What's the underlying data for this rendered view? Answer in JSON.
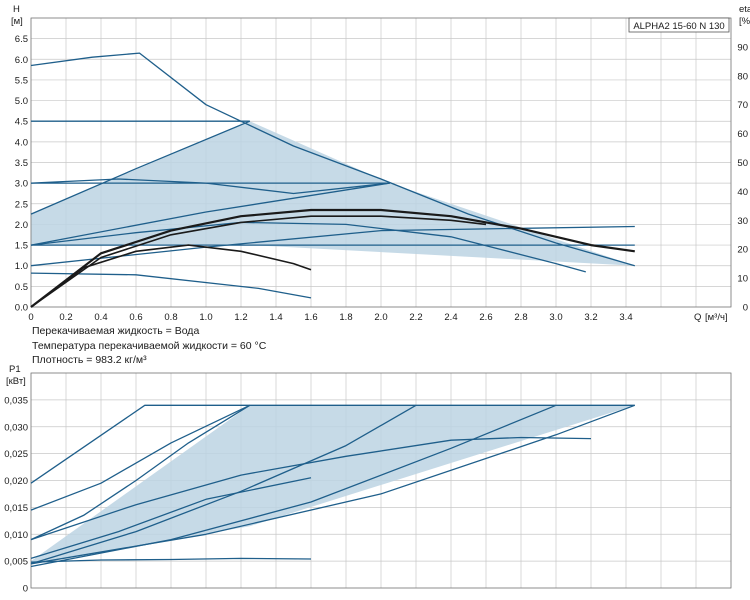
{
  "chart_data": [
    {
      "type": "line",
      "title": "ALPHA2 15-60 N 130",
      "ylabel": "H",
      "yunit": "[м]",
      "xlabel": "Q",
      "xunit": "[м³/ч]",
      "y2label": "eta",
      "y2unit": "[%]",
      "xlim": [
        0,
        4.0
      ],
      "ylim": [
        0,
        7.0
      ],
      "y2lim": [
        0,
        100
      ],
      "grid": true,
      "x_ticks": [
        "0",
        "0.2",
        "0.4",
        "0.6",
        "0.8",
        "1.0",
        "1.2",
        "1.4",
        "1.6",
        "1.8",
        "2.0",
        "2.2",
        "2.4",
        "2.6",
        "2.8",
        "3.0",
        "3.2",
        "3.4"
      ],
      "y_ticks": [
        "0.0",
        "0.5",
        "1.0",
        "1.5",
        "2.0",
        "2.5",
        "3.0",
        "3.5",
        "4.0",
        "4.5",
        "5.0",
        "5.5",
        "6.0",
        "6.5"
      ],
      "y2_ticks": [
        "0",
        "10",
        "20",
        "30",
        "40",
        "50",
        "60",
        "70",
        "80",
        "90"
      ],
      "shaded_region": {
        "x": [
          0,
          1.25,
          2.05,
          3.45,
          1.25,
          0
        ],
        "y": [
          2.25,
          4.5,
          3.0,
          1.0,
          1.5,
          1.5
        ]
      },
      "series": [
        {
          "x": [
            0,
            0.35,
            0.62,
            1.0,
            1.5,
            2.0,
            2.5,
            3.0,
            3.45
          ],
          "y": [
            5.85,
            6.05,
            6.15,
            4.9,
            3.9,
            3.1,
            2.25,
            1.55,
            1.0
          ]
        },
        {
          "x": [
            0,
            1.25
          ],
          "y": [
            4.5,
            4.5
          ]
        },
        {
          "x": [
            0,
            0.6,
            1.25
          ],
          "y": [
            2.25,
            3.35,
            4.5
          ]
        },
        {
          "x": [
            0,
            0.5,
            1.0,
            1.5,
            2.05
          ],
          "y": [
            3.0,
            3.1,
            3.0,
            2.75,
            3.0
          ]
        },
        {
          "x": [
            0,
            2.05
          ],
          "y": [
            3.0,
            3.0
          ]
        },
        {
          "x": [
            0,
            1.0,
            2.05
          ],
          "y": [
            1.5,
            2.3,
            3.0
          ]
        },
        {
          "x": [
            0,
            2.0,
            3.45
          ],
          "y": [
            1.5,
            1.5,
            1.5
          ]
        },
        {
          "x": [
            0,
            0.6,
            1.3,
            1.6
          ],
          "y": [
            0.82,
            0.78,
            0.45,
            0.22
          ]
        },
        {
          "x": [
            0,
            1.0,
            2.0,
            3.45
          ],
          "y": [
            1.0,
            1.45,
            1.85,
            1.95
          ]
        },
        {
          "x": [
            0,
            0.6,
            1.2,
            1.8,
            2.4,
            3.0,
            3.17
          ],
          "y": [
            1.5,
            1.8,
            2.05,
            2.0,
            1.7,
            1.05,
            0.85
          ]
        },
        {
          "x": [
            0,
            0.3,
            0.6,
            0.9,
            1.2,
            1.5,
            1.6
          ],
          "y": [
            0,
            0.95,
            1.35,
            1.5,
            1.35,
            1.05,
            0.9
          ]
        },
        {
          "x": [
            0,
            0.4,
            0.8,
            1.2,
            1.6,
            2.0,
            2.4,
            2.8,
            3.2,
            3.45
          ],
          "y": [
            0,
            1.3,
            1.85,
            2.2,
            2.35,
            2.35,
            2.2,
            1.9,
            1.5,
            1.35
          ]
        },
        {
          "x": [
            0,
            0.4,
            0.8,
            1.2,
            1.6,
            2.0,
            2.4,
            2.6
          ],
          "y": [
            0,
            1.2,
            1.75,
            2.05,
            2.2,
            2.2,
            2.1,
            2.0
          ]
        }
      ]
    },
    {
      "type": "line",
      "ylabel": "P1",
      "yunit": "[кВт]",
      "xlim": [
        0,
        4.0
      ],
      "ylim": [
        0,
        0.04
      ],
      "grid": true,
      "y_ticks": [
        "0",
        "0,005",
        "0,010",
        "0,015",
        "0,020",
        "0,025",
        "0,030",
        "0,035"
      ],
      "shaded_region": {
        "x": [
          0,
          1.25,
          3.45,
          1.25,
          0
        ],
        "y": [
          0.005,
          0.034,
          0.034,
          0.0115,
          0.0045
        ]
      },
      "series": [
        {
          "x": [
            0,
            0.65,
            3.45
          ],
          "y": [
            0.0195,
            0.034,
            0.034
          ]
        },
        {
          "x": [
            0,
            0.4,
            0.8,
            1.25
          ],
          "y": [
            0.0145,
            0.0195,
            0.027,
            0.034
          ]
        },
        {
          "x": [
            0,
            0.3,
            0.6,
            0.9,
            1.25
          ],
          "y": [
            0.009,
            0.0135,
            0.02,
            0.027,
            0.034
          ]
        },
        {
          "x": [
            0,
            0.6,
            1.2,
            1.8,
            2.2
          ],
          "y": [
            0.0045,
            0.0105,
            0.018,
            0.0265,
            0.034
          ]
        },
        {
          "x": [
            0,
            0.8,
            1.6,
            2.4,
            3.0
          ],
          "y": [
            0.004,
            0.009,
            0.016,
            0.026,
            0.034
          ]
        },
        {
          "x": [
            0,
            1.0,
            2.0,
            3.0,
            3.45
          ],
          "y": [
            0.0045,
            0.01,
            0.0175,
            0.0285,
            0.034
          ]
        },
        {
          "x": [
            0,
            0.6,
            1.2,
            1.8,
            2.4,
            2.8,
            3.2
          ],
          "y": [
            0.009,
            0.0155,
            0.021,
            0.0245,
            0.0275,
            0.028,
            0.0278
          ]
        },
        {
          "x": [
            0,
            0.5,
            1.0,
            1.6
          ],
          "y": [
            0.0055,
            0.0105,
            0.0165,
            0.0205
          ]
        },
        {
          "x": [
            0,
            0.4,
            0.8,
            1.2,
            1.6
          ],
          "y": [
            0.0048,
            0.0052,
            0.0053,
            0.0055,
            0.0054
          ]
        }
      ]
    }
  ],
  "fluid": {
    "line1": "Перекачиваемая жидкость = Вода",
    "line2": "Температура перекачиваемой жидкости = 60 °C",
    "line3": "Плотность = 983.2 кг/м³"
  },
  "colors": {
    "curve": "#1f5f8b",
    "shade": "#bcd3e3",
    "grid": "#c8c8c8",
    "eta": "#1a1a1a"
  }
}
